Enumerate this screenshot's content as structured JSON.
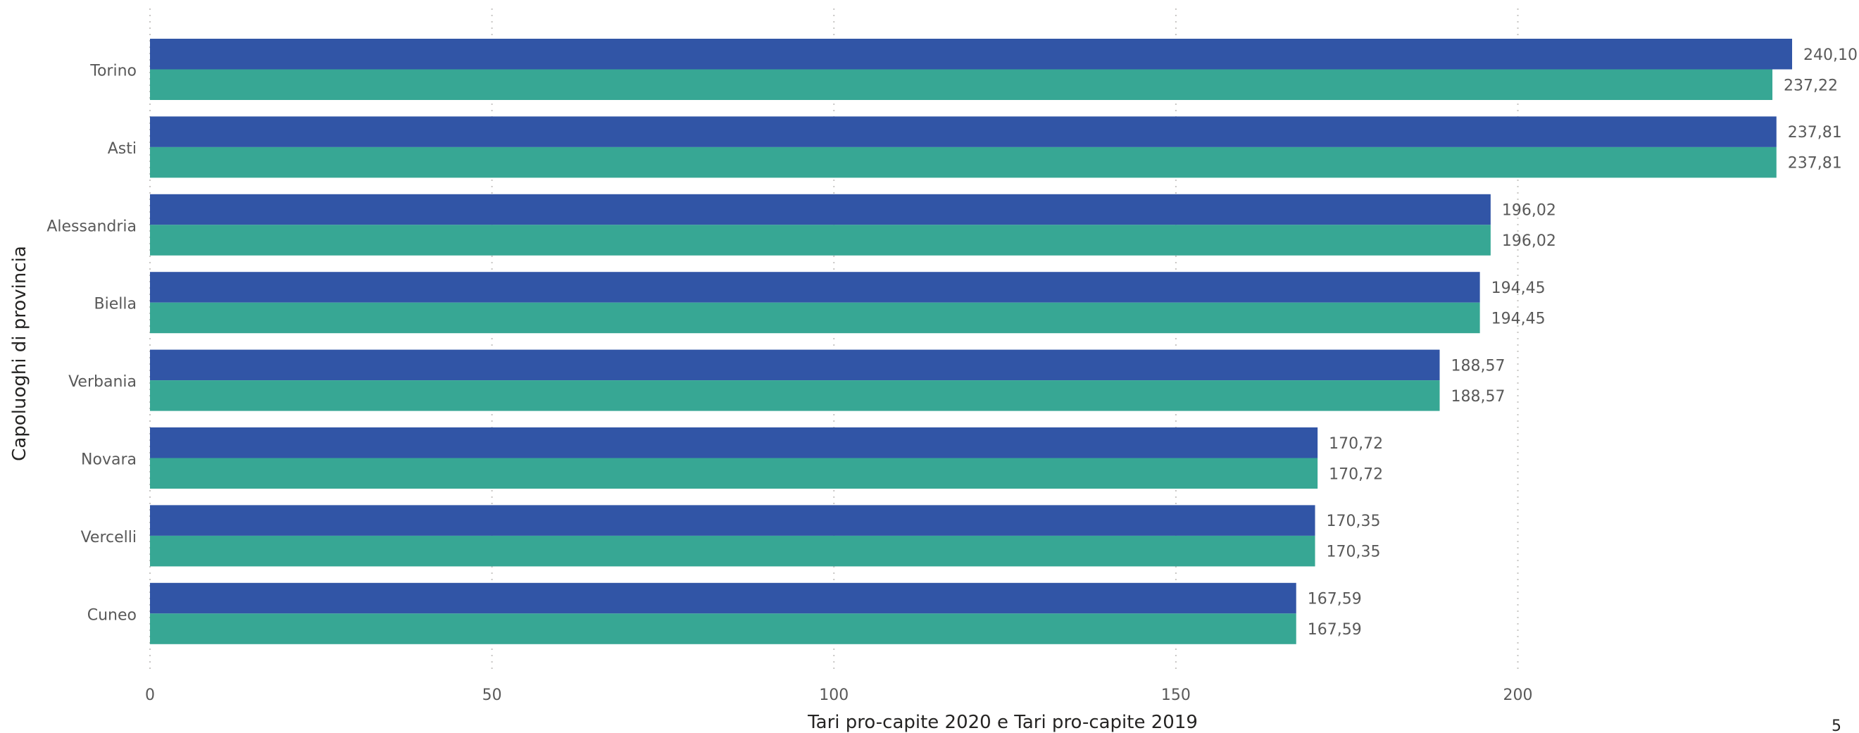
{
  "page_number": "5",
  "chart_data": {
    "type": "bar",
    "orientation": "horizontal",
    "categories": [
      "Torino",
      "Asti",
      "Alessandria",
      "Biella",
      "Verbania",
      "Novara",
      "Vercelli",
      "Cuneo"
    ],
    "series": [
      {
        "name": "Tari pro-capite 2020",
        "color": "#3155a6",
        "values": [
          240.1,
          237.81,
          196.02,
          194.45,
          188.57,
          170.72,
          170.35,
          167.59
        ],
        "labels": [
          "240,10",
          "237,81",
          "196,02",
          "194,45",
          "188,57",
          "170,72",
          "170,35",
          "167,59"
        ]
      },
      {
        "name": "Tari pro-capite 2019",
        "color": "#37a794",
        "values": [
          237.22,
          237.81,
          196.02,
          194.45,
          188.57,
          170.72,
          170.35,
          167.59
        ],
        "labels": [
          "237,22",
          "237,81",
          "196,02",
          "194,45",
          "188,57",
          "170,72",
          "170,35",
          "167,59"
        ]
      }
    ],
    "xlabel": "Tari pro-capite 2020 e Tari pro-capite 2019",
    "ylabel": "Capoluoghi di provincia",
    "xlim": [
      0,
      240.1
    ],
    "xticks": [
      0,
      50,
      100,
      150,
      200
    ],
    "xtick_labels": [
      "0",
      "50",
      "100",
      "150",
      "200"
    ],
    "grid": "vertical dotted",
    "legend": "none"
  }
}
